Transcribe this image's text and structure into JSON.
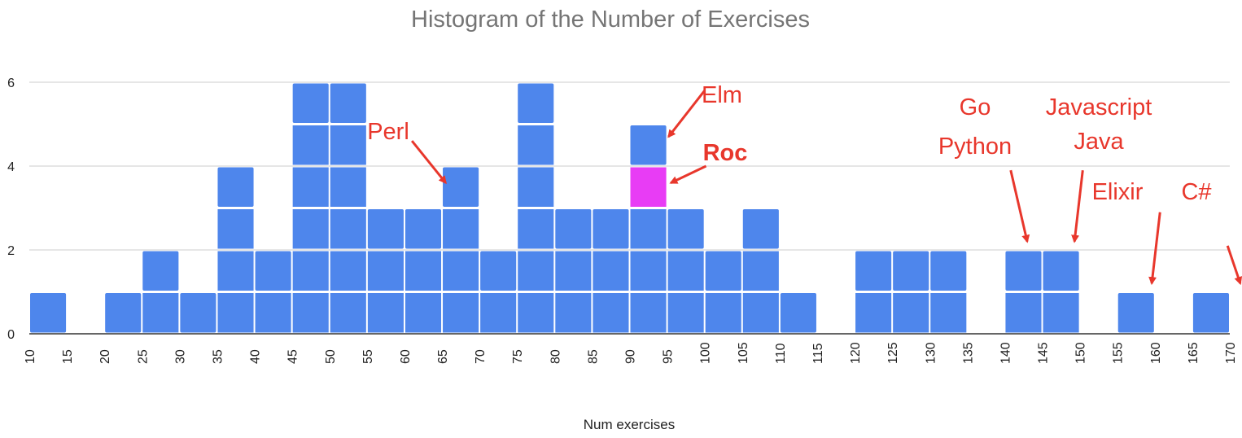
{
  "chart_data": {
    "type": "bar",
    "title": "Histogram of the Number of Exercises",
    "xlabel": "Num exercises",
    "ylabel": "",
    "xlim": [
      10,
      170
    ],
    "ylim": [
      0,
      6
    ],
    "bin_width": 5,
    "x_ticks": [
      10,
      15,
      20,
      25,
      30,
      35,
      40,
      45,
      50,
      55,
      60,
      65,
      70,
      75,
      80,
      85,
      90,
      95,
      100,
      105,
      110,
      115,
      120,
      125,
      130,
      135,
      140,
      145,
      150,
      155,
      160,
      165,
      170
    ],
    "y_ticks": [
      0,
      2,
      4,
      6
    ],
    "grid": true,
    "bins": [
      {
        "start": 10,
        "count": 1
      },
      {
        "start": 15,
        "count": 0
      },
      {
        "start": 20,
        "count": 1
      },
      {
        "start": 25,
        "count": 2
      },
      {
        "start": 30,
        "count": 1
      },
      {
        "start": 35,
        "count": 4
      },
      {
        "start": 40,
        "count": 2
      },
      {
        "start": 45,
        "count": 6
      },
      {
        "start": 50,
        "count": 6
      },
      {
        "start": 55,
        "count": 3
      },
      {
        "start": 60,
        "count": 3
      },
      {
        "start": 65,
        "count": 4
      },
      {
        "start": 70,
        "count": 2
      },
      {
        "start": 75,
        "count": 6
      },
      {
        "start": 80,
        "count": 3
      },
      {
        "start": 85,
        "count": 3
      },
      {
        "start": 90,
        "count": 5,
        "highlight_unit": 4
      },
      {
        "start": 95,
        "count": 3
      },
      {
        "start": 100,
        "count": 2
      },
      {
        "start": 105,
        "count": 3
      },
      {
        "start": 110,
        "count": 1
      },
      {
        "start": 115,
        "count": 0
      },
      {
        "start": 120,
        "count": 2
      },
      {
        "start": 125,
        "count": 2
      },
      {
        "start": 130,
        "count": 2
      },
      {
        "start": 135,
        "count": 0
      },
      {
        "start": 140,
        "count": 2
      },
      {
        "start": 145,
        "count": 2
      },
      {
        "start": 150,
        "count": 0
      },
      {
        "start": 155,
        "count": 1
      },
      {
        "start": 160,
        "count": 0
      },
      {
        "start": 165,
        "count": 1
      }
    ],
    "colors": {
      "bar": "#4e86ec",
      "highlight": "#e83cf5",
      "annotation": "#e8372c",
      "grid": "#cccccc",
      "axis": "#333333"
    },
    "annotations": [
      {
        "lines": [
          "Perl"
        ],
        "bold": false
      },
      {
        "lines": [
          "Elm"
        ],
        "bold": false
      },
      {
        "lines": [
          "Roc"
        ],
        "bold": true
      },
      {
        "lines": [
          "Go",
          "Python"
        ],
        "bold": false
      },
      {
        "lines": [
          "Javascript",
          "Java"
        ],
        "bold": false
      },
      {
        "lines": [
          "Elixir"
        ],
        "bold": false
      },
      {
        "lines": [
          "C#"
        ],
        "bold": false
      }
    ]
  }
}
